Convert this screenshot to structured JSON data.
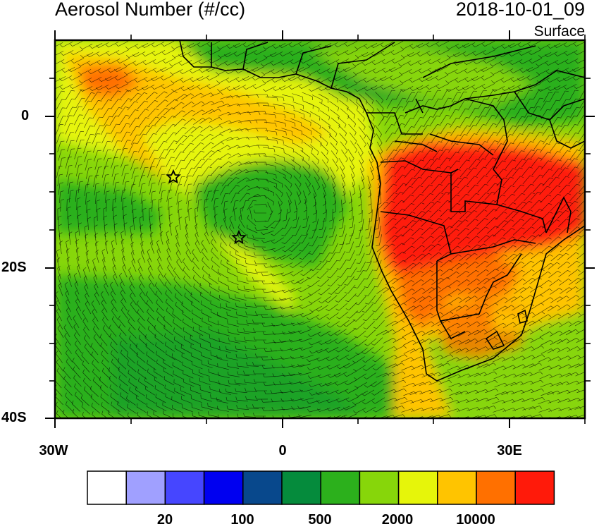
{
  "header": {
    "title": "Aerosol Number (#/cc)",
    "datetime": "2018-10-01_09",
    "level": "Surface"
  },
  "map": {
    "lat_labels": [
      "0",
      "20S",
      "40S"
    ],
    "lon_labels": [
      "30W",
      "0",
      "30E"
    ],
    "markers": [
      "star",
      "star"
    ]
  },
  "colorbar": {
    "colors": [
      "#ffffff",
      "#a0a0ff",
      "#4646ff",
      "#0000f0",
      "#08488c",
      "#058b3c",
      "#2cb01c",
      "#87d60a",
      "#e6f50a",
      "#ffc400",
      "#ff7000",
      "#ff1a0a"
    ],
    "labels": [
      "20",
      "100",
      "500",
      "2000",
      "10000"
    ]
  },
  "colors": {
    "land_red": "#ff1a0a",
    "land_orange": "#ff7000",
    "ocean_green": "#2cb01c",
    "light_green": "#87d60a",
    "yellow": "#e6f50a",
    "amber": "#ffc400"
  }
}
